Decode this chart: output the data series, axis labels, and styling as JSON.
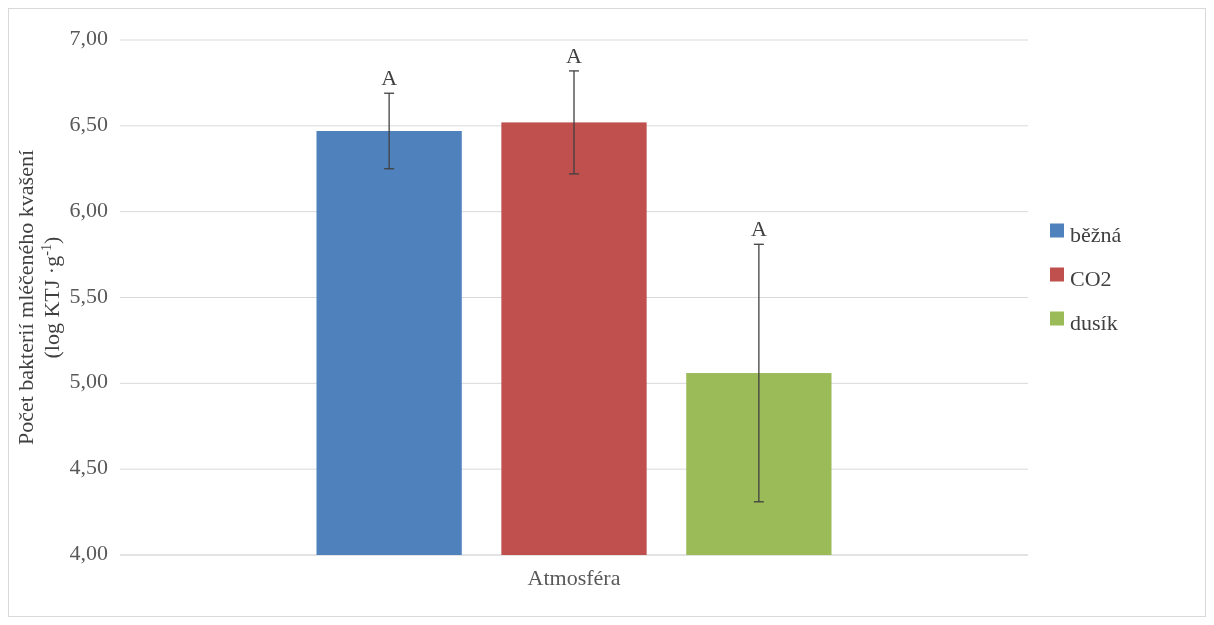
{
  "chart_data": {
    "type": "bar",
    "categories": [
      "Atmosféra"
    ],
    "ylabel": "Počet bakterií mléčeného kvašení\n(log KTJ ·g$^{-1}$)",
    "series": [
      {
        "name": "běžná",
        "color": "#4f81bd",
        "values": [
          6.47
        ],
        "errors": [
          0.22
        ]
      },
      {
        "name": "CO2",
        "color": "#c0504d",
        "values": [
          6.52
        ],
        "errors": [
          0.3
        ]
      },
      {
        "name": "dusík",
        "color": "#9bbb59",
        "values": [
          5.06
        ],
        "errors": [
          0.75
        ]
      }
    ],
    "ylim": [
      4,
      7
    ],
    "yticks": [
      {
        "value": 4,
        "label": "4,00"
      },
      {
        "value": 4.5,
        "label": "4,50"
      },
      {
        "value": 5,
        "label": "5,00"
      },
      {
        "value": 5.5,
        "label": "5,50"
      },
      {
        "value": 6,
        "label": "6,00"
      },
      {
        "value": 6.5,
        "label": "6,50"
      },
      {
        "value": 7,
        "label": "7,00"
      }
    ],
    "grid": "y",
    "legend": "right",
    "annotations": [
      "A",
      "A",
      "A"
    ]
  }
}
